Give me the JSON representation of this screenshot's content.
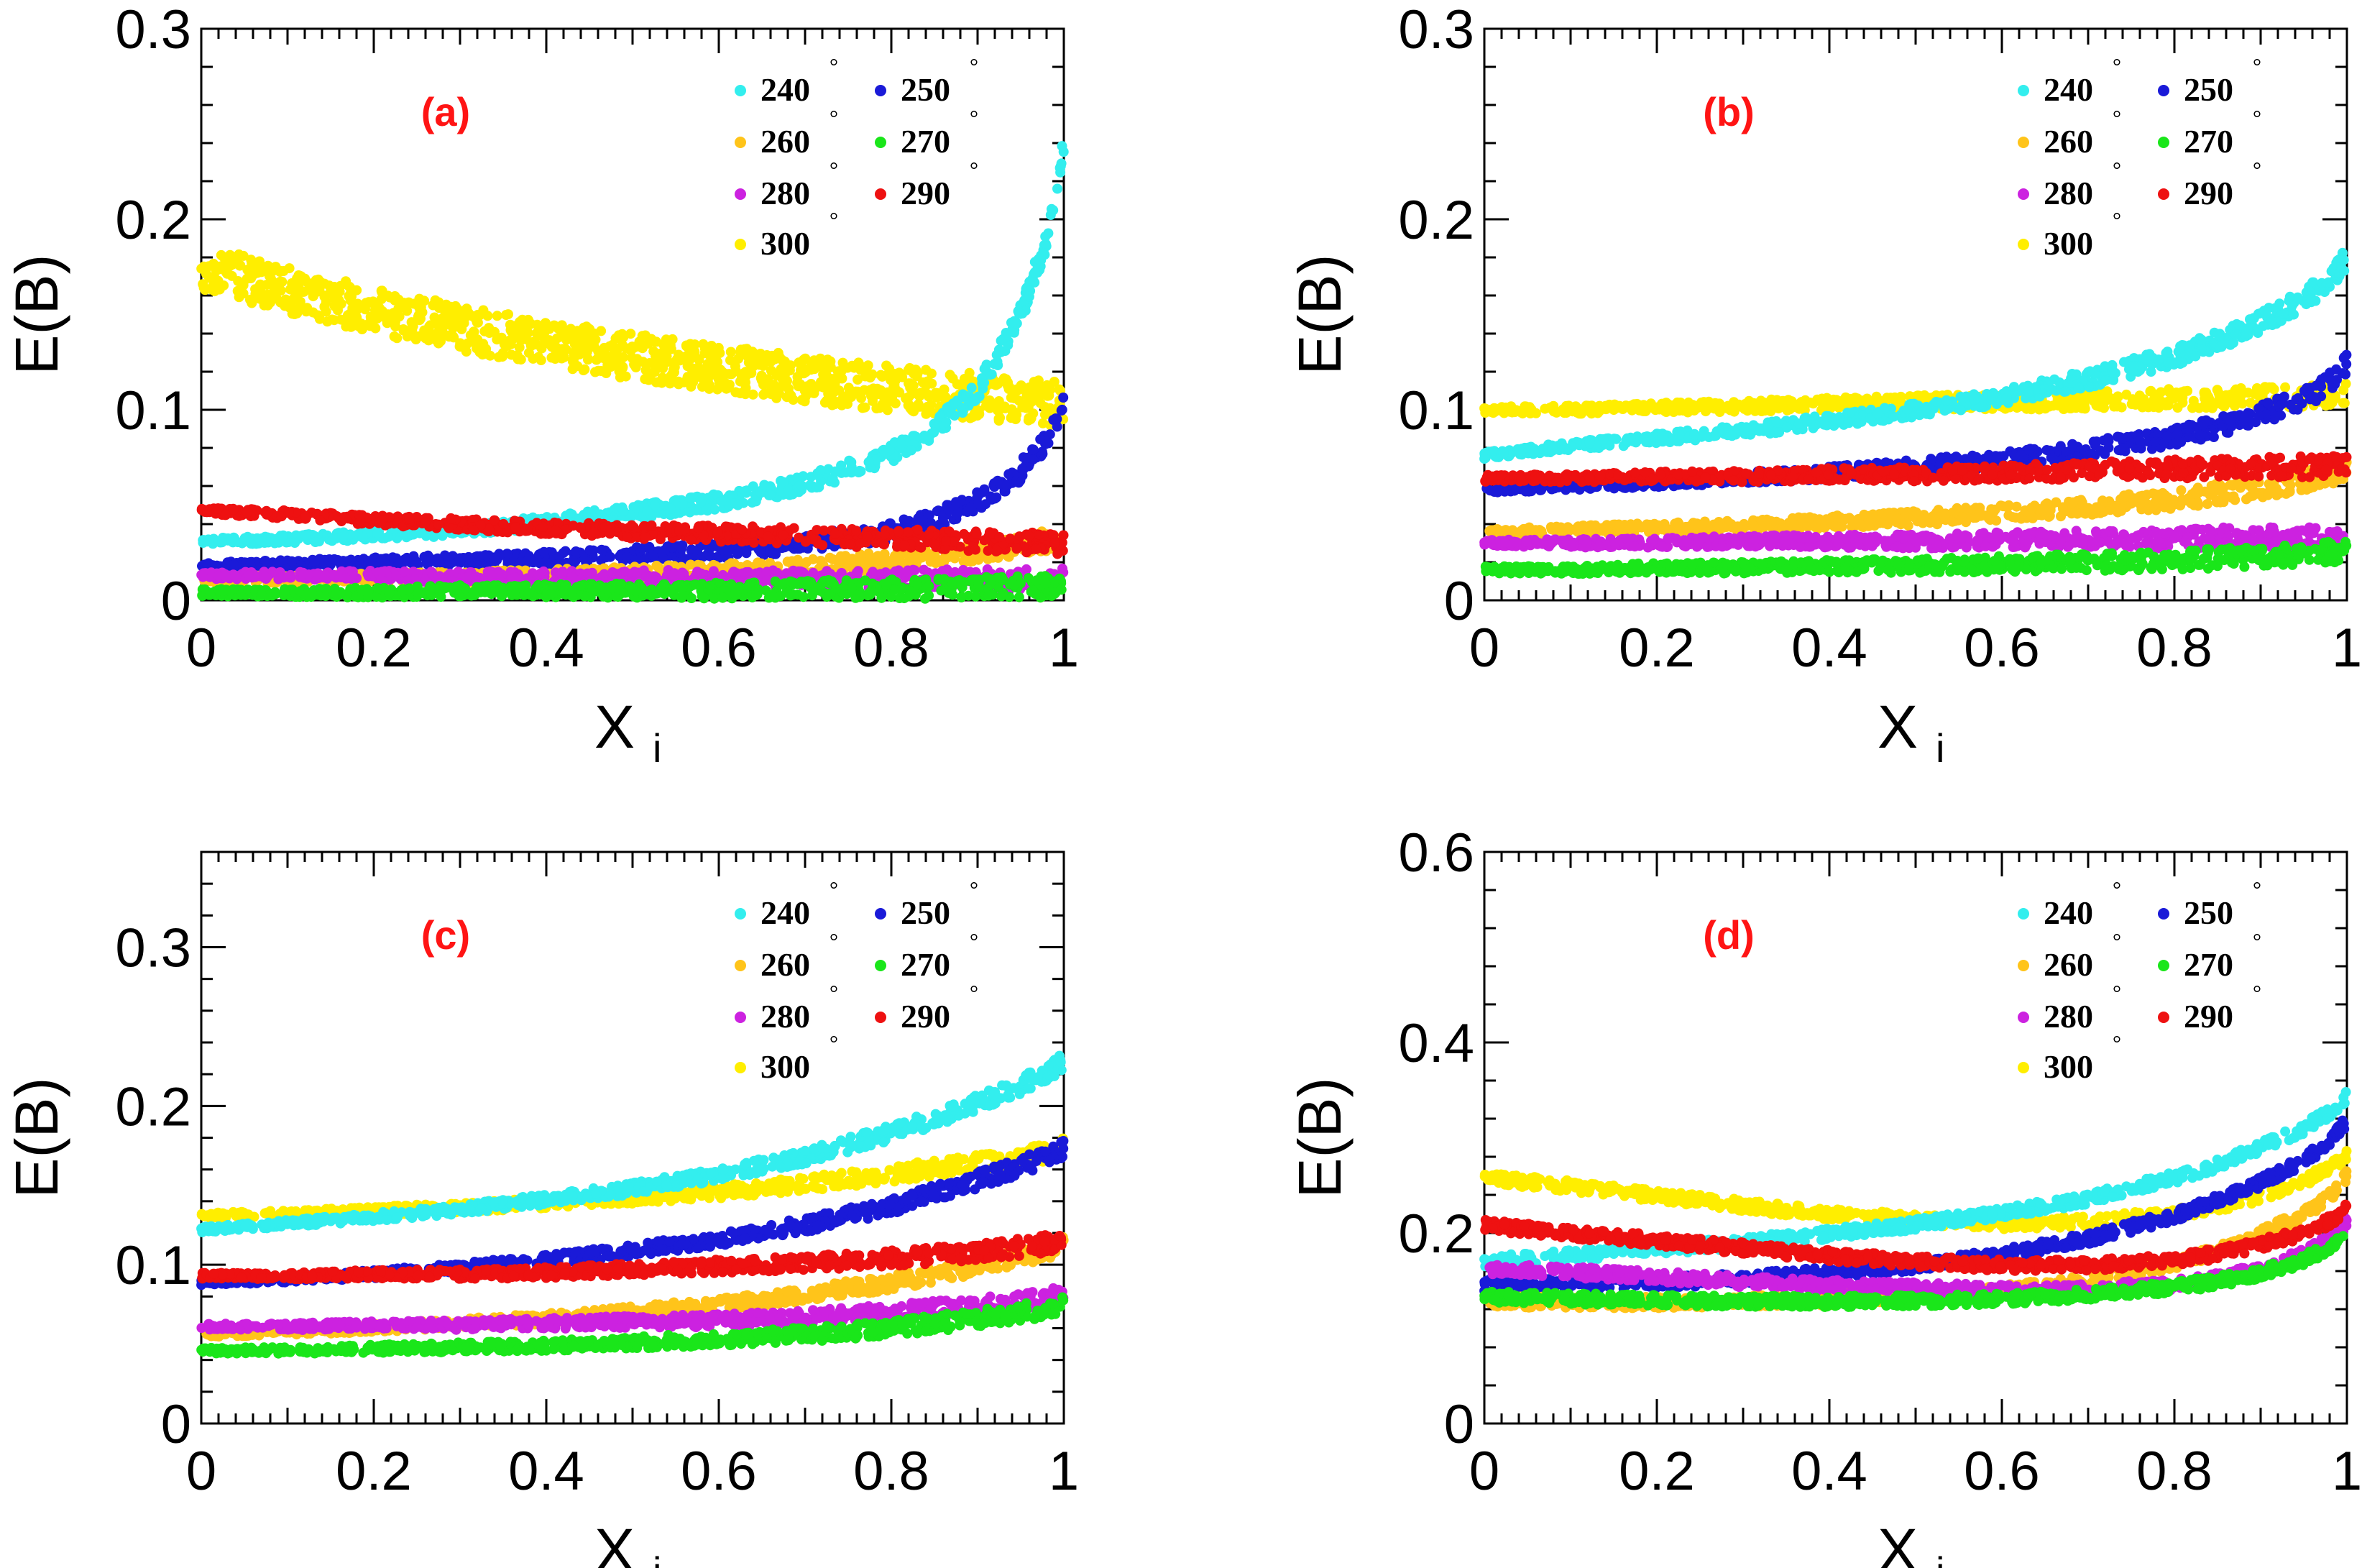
{
  "figure": {
    "x_label": "X",
    "x_label_sub": "i",
    "y_label": "E(B)"
  },
  "legend": {
    "entries": [
      {
        "label": "240",
        "color": "#33eeee"
      },
      {
        "label": "250",
        "color": "#1a1ad8"
      },
      {
        "label": "260",
        "color": "#ffc41a"
      },
      {
        "label": "270",
        "color": "#1ae61a"
      },
      {
        "label": "280",
        "color": "#cc22e0"
      },
      {
        "label": "290",
        "color": "#ee1111"
      },
      {
        "label": "300",
        "color": "#ffee00"
      }
    ],
    "degree_symbol": "°"
  },
  "chart_data": [
    {
      "type": "scatter",
      "panel_label": "(a)",
      "xlabel": "X",
      "xlabel_sub": "i",
      "ylabel": "E(B)",
      "xlim": [
        0,
        1
      ],
      "ylim": [
        0,
        0.3
      ],
      "x_ticks": [
        "0",
        "0.2",
        "0.4",
        "0.6",
        "0.8",
        "1"
      ],
      "y_ticks": [
        "0",
        "0.1",
        "0.2",
        "0.3"
      ],
      "y_tick_values": [
        0,
        0.1,
        0.2,
        0.3
      ],
      "legend_position": "top-right",
      "x": [
        0,
        0.1,
        0.2,
        0.3,
        0.4,
        0.5,
        0.6,
        0.7,
        0.8,
        0.85,
        0.9,
        0.95,
        0.98,
        1.0
      ],
      "series": [
        {
          "name": "240",
          "values": [
            0.031,
            0.032,
            0.034,
            0.037,
            0.041,
            0.046,
            0.052,
            0.061,
            0.077,
            0.09,
            0.11,
            0.15,
            0.19,
            0.24
          ]
        },
        {
          "name": "250",
          "values": [
            0.018,
            0.019,
            0.02,
            0.021,
            0.022,
            0.024,
            0.026,
            0.03,
            0.036,
            0.042,
            0.052,
            0.068,
            0.083,
            0.102
          ]
        },
        {
          "name": "260",
          "values": [
            0.011,
            0.011,
            0.012,
            0.012,
            0.013,
            0.014,
            0.015,
            0.017,
            0.021,
            0.023,
            0.026,
            0.029,
            0.031,
            0.033
          ]
        },
        {
          "name": "270",
          "values": [
            0.004,
            0.004,
            0.004,
            0.005,
            0.005,
            0.005,
            0.005,
            0.006,
            0.006,
            0.006,
            0.007,
            0.007,
            0.007,
            0.008
          ]
        },
        {
          "name": "280",
          "values": [
            0.013,
            0.013,
            0.013,
            0.012,
            0.012,
            0.012,
            0.012,
            0.011,
            0.011,
            0.011,
            0.011,
            0.011,
            0.011,
            0.011
          ]
        },
        {
          "name": "290",
          "values": [
            0.047,
            0.045,
            0.042,
            0.04,
            0.038,
            0.036,
            0.035,
            0.034,
            0.032,
            0.032,
            0.031,
            0.031,
            0.03,
            0.03
          ]
        },
        {
          "name": "300",
          "values": [
            0.175,
            0.163,
            0.152,
            0.143,
            0.135,
            0.128,
            0.122,
            0.116,
            0.111,
            0.109,
            0.107,
            0.105,
            0.104,
            0.103
          ]
        }
      ]
    },
    {
      "type": "scatter",
      "panel_label": "(b)",
      "xlabel": "X",
      "xlabel_sub": "i",
      "ylabel": "E(B)",
      "xlim": [
        0,
        1
      ],
      "ylim": [
        0,
        0.3
      ],
      "x_ticks": [
        "0",
        "0.2",
        "0.4",
        "0.6",
        "0.8",
        "1"
      ],
      "y_ticks": [
        "0",
        "0.1",
        "0.2",
        "0.3"
      ],
      "y_tick_values": [
        0,
        0.1,
        0.2,
        0.3
      ],
      "legend_position": "top-right",
      "x": [
        0,
        0.1,
        0.2,
        0.3,
        0.4,
        0.5,
        0.6,
        0.7,
        0.8,
        0.85,
        0.9,
        0.95,
        0.98,
        1.0
      ],
      "series": [
        {
          "name": "240",
          "values": [
            0.076,
            0.081,
            0.085,
            0.089,
            0.094,
            0.1,
            0.107,
            0.116,
            0.128,
            0.136,
            0.146,
            0.158,
            0.168,
            0.18
          ]
        },
        {
          "name": "250",
          "values": [
            0.058,
            0.06,
            0.062,
            0.064,
            0.067,
            0.07,
            0.074,
            0.079,
            0.086,
            0.091,
            0.097,
            0.106,
            0.114,
            0.124
          ]
        },
        {
          "name": "260",
          "values": [
            0.036,
            0.037,
            0.038,
            0.039,
            0.041,
            0.043,
            0.046,
            0.049,
            0.053,
            0.056,
            0.059,
            0.063,
            0.066,
            0.069
          ]
        },
        {
          "name": "270",
          "values": [
            0.016,
            0.016,
            0.017,
            0.017,
            0.018,
            0.018,
            0.019,
            0.02,
            0.021,
            0.022,
            0.023,
            0.024,
            0.025,
            0.025
          ]
        },
        {
          "name": "280",
          "values": [
            0.03,
            0.03,
            0.03,
            0.031,
            0.031,
            0.031,
            0.032,
            0.032,
            0.032,
            0.033,
            0.033,
            0.033,
            0.033,
            0.034
          ]
        },
        {
          "name": "290",
          "values": [
            0.064,
            0.064,
            0.065,
            0.065,
            0.066,
            0.066,
            0.067,
            0.068,
            0.069,
            0.069,
            0.07,
            0.07,
            0.071,
            0.071
          ]
        },
        {
          "name": "300",
          "values": [
            0.1,
            0.1,
            0.101,
            0.102,
            0.103,
            0.104,
            0.104,
            0.105,
            0.106,
            0.106,
            0.107,
            0.107,
            0.108,
            0.108
          ]
        }
      ]
    },
    {
      "type": "scatter",
      "panel_label": "(c)",
      "xlabel": "X",
      "xlabel_sub": "i",
      "ylabel": "E(B)",
      "xlim": [
        0,
        1
      ],
      "ylim": [
        0,
        0.36
      ],
      "x_ticks": [
        "0",
        "0.2",
        "0.4",
        "0.6",
        "0.8",
        "1"
      ],
      "y_ticks": [
        "0",
        "0.1",
        "0.2",
        "0.3"
      ],
      "y_tick_values": [
        0,
        0.1,
        0.2,
        0.3
      ],
      "legend_position": "top-right",
      "x": [
        0,
        0.1,
        0.2,
        0.3,
        0.4,
        0.5,
        0.6,
        0.7,
        0.8,
        0.85,
        0.9,
        0.95,
        0.98,
        1.0
      ],
      "series": [
        {
          "name": "240",
          "values": [
            0.122,
            0.126,
            0.13,
            0.135,
            0.141,
            0.148,
            0.157,
            0.168,
            0.183,
            0.192,
            0.202,
            0.213,
            0.221,
            0.228
          ]
        },
        {
          "name": "250",
          "values": [
            0.089,
            0.091,
            0.094,
            0.098,
            0.103,
            0.109,
            0.116,
            0.125,
            0.137,
            0.145,
            0.153,
            0.162,
            0.168,
            0.173
          ]
        },
        {
          "name": "260",
          "values": [
            0.056,
            0.058,
            0.06,
            0.063,
            0.066,
            0.07,
            0.075,
            0.081,
            0.089,
            0.094,
            0.099,
            0.105,
            0.109,
            0.112
          ]
        },
        {
          "name": "270",
          "values": [
            0.046,
            0.046,
            0.047,
            0.048,
            0.049,
            0.051,
            0.053,
            0.056,
            0.06,
            0.063,
            0.066,
            0.07,
            0.072,
            0.074
          ]
        },
        {
          "name": "280",
          "values": [
            0.061,
            0.061,
            0.062,
            0.062,
            0.063,
            0.064,
            0.065,
            0.067,
            0.07,
            0.072,
            0.074,
            0.077,
            0.079,
            0.081
          ]
        },
        {
          "name": "290",
          "values": [
            0.093,
            0.093,
            0.094,
            0.094,
            0.095,
            0.097,
            0.099,
            0.101,
            0.104,
            0.106,
            0.108,
            0.111,
            0.113,
            0.115
          ]
        },
        {
          "name": "300",
          "values": [
            0.131,
            0.132,
            0.134,
            0.136,
            0.139,
            0.142,
            0.146,
            0.151,
            0.157,
            0.161,
            0.164,
            0.168,
            0.171,
            0.174
          ]
        }
      ]
    },
    {
      "type": "scatter",
      "panel_label": "(d)",
      "xlabel": "X",
      "xlabel_sub": "i",
      "ylabel": "E(B)",
      "xlim": [
        0,
        1
      ],
      "ylim": [
        0,
        0.6
      ],
      "x_ticks": [
        "0",
        "0.2",
        "0.4",
        "0.6",
        "0.8",
        "1"
      ],
      "y_ticks": [
        "0",
        "0.2",
        "0.4",
        "0.6"
      ],
      "y_tick_values": [
        0,
        0.2,
        0.4,
        0.6
      ],
      "legend_position": "top-right",
      "x": [
        0,
        0.1,
        0.2,
        0.3,
        0.4,
        0.5,
        0.6,
        0.7,
        0.8,
        0.85,
        0.9,
        0.95,
        0.98,
        1.0
      ],
      "series": [
        {
          "name": "240",
          "values": [
            0.17,
            0.176,
            0.183,
            0.19,
            0.199,
            0.209,
            0.221,
            0.236,
            0.258,
            0.272,
            0.29,
            0.31,
            0.327,
            0.343
          ]
        },
        {
          "name": "250",
          "values": [
            0.145,
            0.146,
            0.148,
            0.152,
            0.158,
            0.166,
            0.178,
            0.194,
            0.218,
            0.234,
            0.253,
            0.276,
            0.296,
            0.318
          ]
        },
        {
          "name": "260",
          "values": [
            0.128,
            0.127,
            0.127,
            0.128,
            0.13,
            0.134,
            0.14,
            0.15,
            0.168,
            0.181,
            0.198,
            0.22,
            0.238,
            0.26
          ]
        },
        {
          "name": "270",
          "values": [
            0.133,
            0.131,
            0.129,
            0.128,
            0.128,
            0.129,
            0.131,
            0.135,
            0.143,
            0.149,
            0.158,
            0.172,
            0.185,
            0.2
          ]
        },
        {
          "name": "280",
          "values": [
            0.163,
            0.159,
            0.154,
            0.149,
            0.145,
            0.142,
            0.14,
            0.141,
            0.146,
            0.152,
            0.162,
            0.178,
            0.194,
            0.21
          ]
        },
        {
          "name": "290",
          "values": [
            0.208,
            0.2,
            0.192,
            0.184,
            0.176,
            0.17,
            0.166,
            0.166,
            0.172,
            0.178,
            0.188,
            0.2,
            0.212,
            0.225
          ]
        },
        {
          "name": "300",
          "values": [
            0.258,
            0.249,
            0.239,
            0.229,
            0.22,
            0.214,
            0.21,
            0.212,
            0.22,
            0.228,
            0.239,
            0.255,
            0.268,
            0.282
          ]
        }
      ]
    }
  ]
}
